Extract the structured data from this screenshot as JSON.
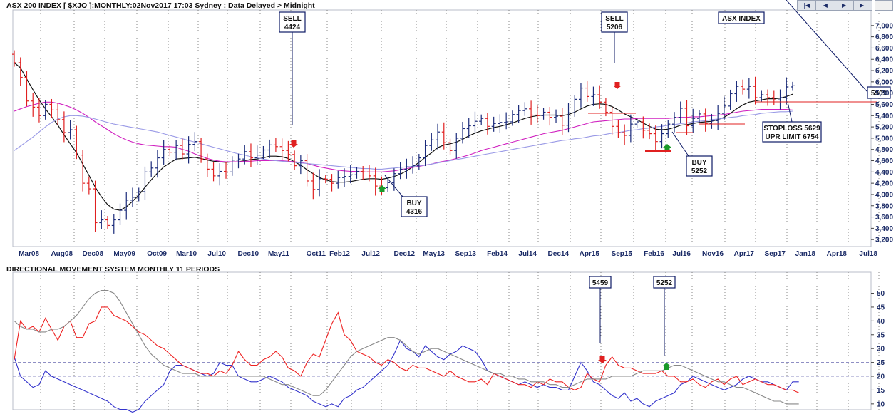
{
  "header": {
    "title": "ASX 200 INDEX [ $XJO ]:MONTHLY:02Nov2017 17:03 Sydney : Data Delayed > Midnight",
    "legend_box": "ASX INDEX",
    "nav_buttons": [
      "|◀",
      "◀",
      "▶",
      "▶|"
    ]
  },
  "colors": {
    "up_bar": "#1a2a7a",
    "down_bar": "#e02020",
    "ma_fast": "#111111",
    "ma_mid": "#d020c0",
    "ma_slow": "#9a9ae6",
    "di_plus": "#3333cc",
    "di_minus": "#ee2222",
    "adx": "#888888",
    "annotation_box": "#0d1a66"
  },
  "chart_data": [
    {
      "type": "candlestick",
      "title": "ASX 200 INDEX [ $XJO ]:MONTHLY:02Nov2017 17:03 Sydney : Data Delayed > Midnight",
      "x_tick_labels": [
        "Mar08",
        "Aug08",
        "Dec08",
        "May09",
        "Oct09",
        "Mar10",
        "Jul10",
        "Dec10",
        "May11",
        "Oct11",
        "Feb12",
        "Jul12",
        "Dec12",
        "May13",
        "Sep13",
        "Feb14",
        "Jul14",
        "Dec14",
        "Apr15",
        "Sep15",
        "Feb16",
        "Jul16",
        "Nov16",
        "Apr17",
        "Sep17",
        "Jan18",
        "Apr18",
        "Jul18"
      ],
      "y_tick_labels": [
        "3,200",
        "3,400",
        "3,600",
        "3,800",
        "4,000",
        "4,200",
        "4,400",
        "4,600",
        "4,800",
        "5,000",
        "5,200",
        "5,400",
        "5,600",
        "5,800",
        "6,000",
        "6,200",
        "6,400",
        "6,600",
        "6,800",
        "7,000"
      ],
      "ylim": [
        3000,
        7200
      ],
      "closes": [
        6340,
        6080,
        5660,
        5550,
        5400,
        5600,
        5500,
        5330,
        5100,
        5150,
        4700,
        4200,
        4100,
        3500,
        3550,
        3450,
        3550,
        3720,
        3900,
        3950,
        4050,
        4400,
        4470,
        4650,
        4800,
        4750,
        4870,
        4720,
        4890,
        4940,
        4630,
        4450,
        4330,
        4410,
        4400,
        4610,
        4630,
        4760,
        4650,
        4700,
        4790,
        4880,
        4850,
        4780,
        4710,
        4510,
        4600,
        4240,
        4090,
        4280,
        4270,
        4200,
        4300,
        4320,
        4350,
        4410,
        4400,
        4330,
        4150,
        4120,
        4210,
        4370,
        4450,
        4490,
        4510,
        4650,
        4870,
        4970,
        5110,
        4920,
        4780,
        5000,
        5170,
        5220,
        5300,
        5350,
        5210,
        5260,
        5280,
        5290,
        5420,
        5490,
        5520,
        5410,
        5400,
        5460,
        5370,
        5390,
        5230,
        5450,
        5690,
        5890,
        5740,
        5770,
        5640,
        5460,
        5210,
        5100,
        5050,
        5250,
        5290,
        5140,
        5080,
        4940,
        5080,
        5250,
        5370,
        5530,
        5220,
        5350,
        5430,
        5260,
        5310,
        5440,
        5570,
        5790,
        5920,
        5870,
        5920,
        5720,
        5770,
        5720,
        5680,
        5720,
        5910,
        5930
      ],
      "pivot": {
        "index": 126,
        "label": "5909"
      },
      "moving_averages": [
        {
          "color": "#111111",
          "values": [
            6340,
            6250,
            6050,
            5860,
            5680,
            5520,
            5380,
            5230,
            5060,
            4900,
            4740,
            4540,
            4340,
            4130,
            3960,
            3820,
            3740,
            3720,
            3780,
            3880,
            3990,
            4130,
            4260,
            4380,
            4490,
            4560,
            4630,
            4640,
            4650,
            4660,
            4640,
            4610,
            4590,
            4580,
            4570,
            4580,
            4580,
            4600,
            4620,
            4630,
            4650,
            4680,
            4680,
            4670,
            4640,
            4580,
            4520,
            4440,
            4370,
            4300,
            4260,
            4230,
            4220,
            4220,
            4230,
            4250,
            4270,
            4280,
            4280,
            4270,
            4290,
            4320,
            4360,
            4420,
            4490,
            4570,
            4660,
            4740,
            4830,
            4880,
            4900,
            4930,
            4980,
            5040,
            5090,
            5130,
            5160,
            5190,
            5210,
            5240,
            5270,
            5310,
            5350,
            5380,
            5400,
            5410,
            5410,
            5410,
            5400,
            5420,
            5460,
            5520,
            5570,
            5600,
            5610,
            5600,
            5560,
            5500,
            5430,
            5380,
            5330,
            5270,
            5210,
            5160,
            5150,
            5160,
            5190,
            5230,
            5240,
            5260,
            5280,
            5290,
            5300,
            5330,
            5370,
            5440,
            5520,
            5590,
            5640,
            5660,
            5680,
            5700,
            5700,
            5710,
            5740,
            5780
          ]
        },
        {
          "color": "#d020c0",
          "values": [
            5480,
            5520,
            5560,
            5590,
            5620,
            5640,
            5640,
            5620,
            5590,
            5550,
            5500,
            5440,
            5370,
            5290,
            5220,
            5150,
            5080,
            5020,
            4970,
            4930,
            4900,
            4880,
            4870,
            4860,
            4850,
            4850,
            4840,
            4800,
            4770,
            4720,
            4680,
            4640,
            4610,
            4590,
            4580,
            4580,
            4580,
            4590,
            4590,
            4600,
            4600,
            4600,
            4600,
            4600,
            4590,
            4580,
            4570,
            4550,
            4520,
            4490,
            4470,
            4450,
            4430,
            4420,
            4410,
            4410,
            4400,
            4400,
            4400,
            4400,
            4410,
            4420,
            4440,
            4460,
            4480,
            4500,
            4520,
            4540,
            4570,
            4590,
            4610,
            4640,
            4670,
            4700,
            4740,
            4780,
            4810,
            4840,
            4870,
            4900,
            4930,
            4960,
            4990,
            5020,
            5050,
            5080,
            5100,
            5120,
            5140,
            5170,
            5200,
            5230,
            5260,
            5290,
            5300,
            5310,
            5320,
            5330,
            5340,
            5340,
            5350,
            5350,
            5350,
            5350,
            5350,
            5350,
            5360,
            5370,
            5370,
            5380,
            5380,
            5390,
            5400,
            5410,
            5420,
            5440,
            5460,
            5480,
            5490,
            5500,
            5510,
            5510,
            5510,
            5510,
            5510,
            5500
          ]
        },
        {
          "color": "#9a9ae6",
          "values": [
            4780,
            4860,
            4940,
            5020,
            5110,
            5200,
            5280,
            5340,
            5380,
            5400,
            5400,
            5390,
            5370,
            5340,
            5310,
            5280,
            5250,
            5230,
            5210,
            5190,
            5170,
            5150,
            5130,
            5110,
            5080,
            5050,
            5020,
            4990,
            4960,
            4930,
            4900,
            4870,
            4840,
            4810,
            4780,
            4750,
            4720,
            4700,
            4670,
            4650,
            4630,
            4610,
            4600,
            4590,
            4580,
            4570,
            4560,
            4550,
            4540,
            4530,
            4520,
            4510,
            4500,
            4490,
            4480,
            4470,
            4460,
            4460,
            4450,
            4450,
            4460,
            4470,
            4480,
            4490,
            4500,
            4510,
            4520,
            4540,
            4560,
            4580,
            4600,
            4620,
            4640,
            4660,
            4680,
            4700,
            4720,
            4740,
            4760,
            4780,
            4800,
            4820,
            4840,
            4860,
            4880,
            4900,
            4920,
            4940,
            4960,
            4970,
            4990,
            5000,
            5020,
            5040,
            5050,
            5070,
            5090,
            5100,
            5120,
            5140,
            5150,
            5170,
            5180,
            5200,
            5210,
            5230,
            5240,
            5260,
            5270,
            5290,
            5300,
            5310,
            5330,
            5340,
            5350,
            5370,
            5380,
            5400,
            5410,
            5420,
            5440,
            5450,
            5460,
            5470,
            5470,
            5480
          ]
        }
      ],
      "annotations": [
        {
          "label": "SELL",
          "value": "4424"
        },
        {
          "label": "SELL",
          "value": "5206"
        },
        {
          "label": "BUY",
          "value": "4316"
        },
        {
          "label": "BUY",
          "value": "5252"
        },
        {
          "label": "STOPLOSS 5629",
          "value": "UPR LIMIT 6754"
        }
      ]
    },
    {
      "type": "line",
      "title": "DIRECTIONAL MOVEMENT SYSTEM MONTHLY 11 PERIODS",
      "y_tick_labels": [
        "10",
        "15",
        "20",
        "25",
        "30",
        "35",
        "40",
        "45",
        "50"
      ],
      "ylim": [
        7,
        54
      ],
      "reference_lines": [
        20,
        25
      ],
      "series": [
        {
          "color": "#3333cc",
          "values": [
            27,
            20,
            18,
            16,
            17,
            22,
            20,
            19,
            18,
            17,
            16,
            15,
            14,
            13,
            12,
            11,
            9,
            8,
            8,
            7,
            8,
            11,
            13,
            15,
            17,
            22,
            24,
            24,
            23,
            22,
            21,
            20,
            21,
            25,
            24,
            24,
            20,
            19,
            18,
            18,
            19,
            20,
            19,
            18,
            16,
            15,
            14,
            13,
            11,
            10,
            9,
            10,
            9,
            12,
            13,
            15,
            16,
            18,
            20,
            22,
            24,
            28,
            33,
            30,
            29,
            27,
            31,
            29,
            27,
            26,
            28,
            29,
            31,
            30,
            29,
            26,
            22,
            21,
            20,
            19,
            18,
            17,
            18,
            17,
            16,
            17,
            16,
            16,
            15,
            15,
            20,
            25,
            22,
            18,
            17,
            15,
            13,
            12,
            14,
            11,
            12,
            10,
            9,
            11,
            12,
            13,
            14,
            17,
            18,
            20,
            19,
            18,
            17,
            16,
            15,
            16,
            17,
            19,
            20,
            19,
            18,
            18,
            17,
            16,
            15,
            18,
            18
          ]
        },
        {
          "color": "#ee2222",
          "values": [
            26,
            40,
            37,
            38,
            36,
            41,
            37,
            33,
            38,
            40,
            34,
            34,
            39,
            40,
            45,
            45,
            42,
            41,
            40,
            38,
            36,
            35,
            33,
            31,
            30,
            28,
            26,
            24,
            23,
            22,
            21,
            21,
            20,
            22,
            21,
            24,
            29,
            26,
            24,
            24,
            26,
            27,
            29,
            27,
            23,
            22,
            20,
            25,
            28,
            27,
            33,
            39,
            43,
            35,
            33,
            29,
            28,
            27,
            25,
            24,
            26,
            25,
            23,
            22,
            24,
            23,
            23,
            22,
            21,
            20,
            22,
            20,
            19,
            18,
            18,
            19,
            17,
            21,
            20,
            19,
            18,
            17,
            17,
            16,
            18,
            17,
            19,
            18,
            18,
            16,
            15,
            16,
            21,
            19,
            18,
            24,
            27,
            24,
            23,
            23,
            22,
            21,
            21,
            21,
            22,
            20,
            20,
            18,
            18,
            19,
            17,
            16,
            18,
            19,
            17,
            19,
            20,
            17,
            18,
            19,
            18,
            17,
            17,
            16,
            15,
            15,
            14
          ]
        },
        {
          "color": "#888888",
          "values": [
            40,
            38,
            37,
            37,
            36,
            36,
            37,
            37,
            38,
            40,
            42,
            45,
            48,
            50,
            51,
            51,
            50,
            47,
            43,
            39,
            35,
            31,
            28,
            26,
            24,
            23,
            22,
            21,
            21,
            21,
            20,
            20,
            20,
            20,
            20,
            20,
            20,
            20,
            20,
            20,
            20,
            19,
            18,
            17,
            17,
            16,
            15,
            14,
            13,
            13,
            15,
            18,
            21,
            24,
            27,
            29,
            30,
            31,
            32,
            33,
            34,
            34,
            33,
            31,
            29,
            28,
            29,
            30,
            30,
            29,
            28,
            27,
            26,
            25,
            24,
            23,
            22,
            21,
            21,
            20,
            20,
            19,
            19,
            18,
            18,
            18,
            17,
            17,
            16,
            16,
            17,
            18,
            19,
            19,
            19,
            19,
            20,
            20,
            20,
            20,
            21,
            22,
            22,
            22,
            22,
            23,
            24,
            24,
            23,
            22,
            21,
            20,
            19,
            18,
            18,
            17,
            16,
            16,
            15,
            14,
            13,
            12,
            11,
            11,
            10,
            10,
            10
          ]
        }
      ],
      "annotations": [
        {
          "value": "5459"
        },
        {
          "value": "5252"
        }
      ]
    }
  ]
}
